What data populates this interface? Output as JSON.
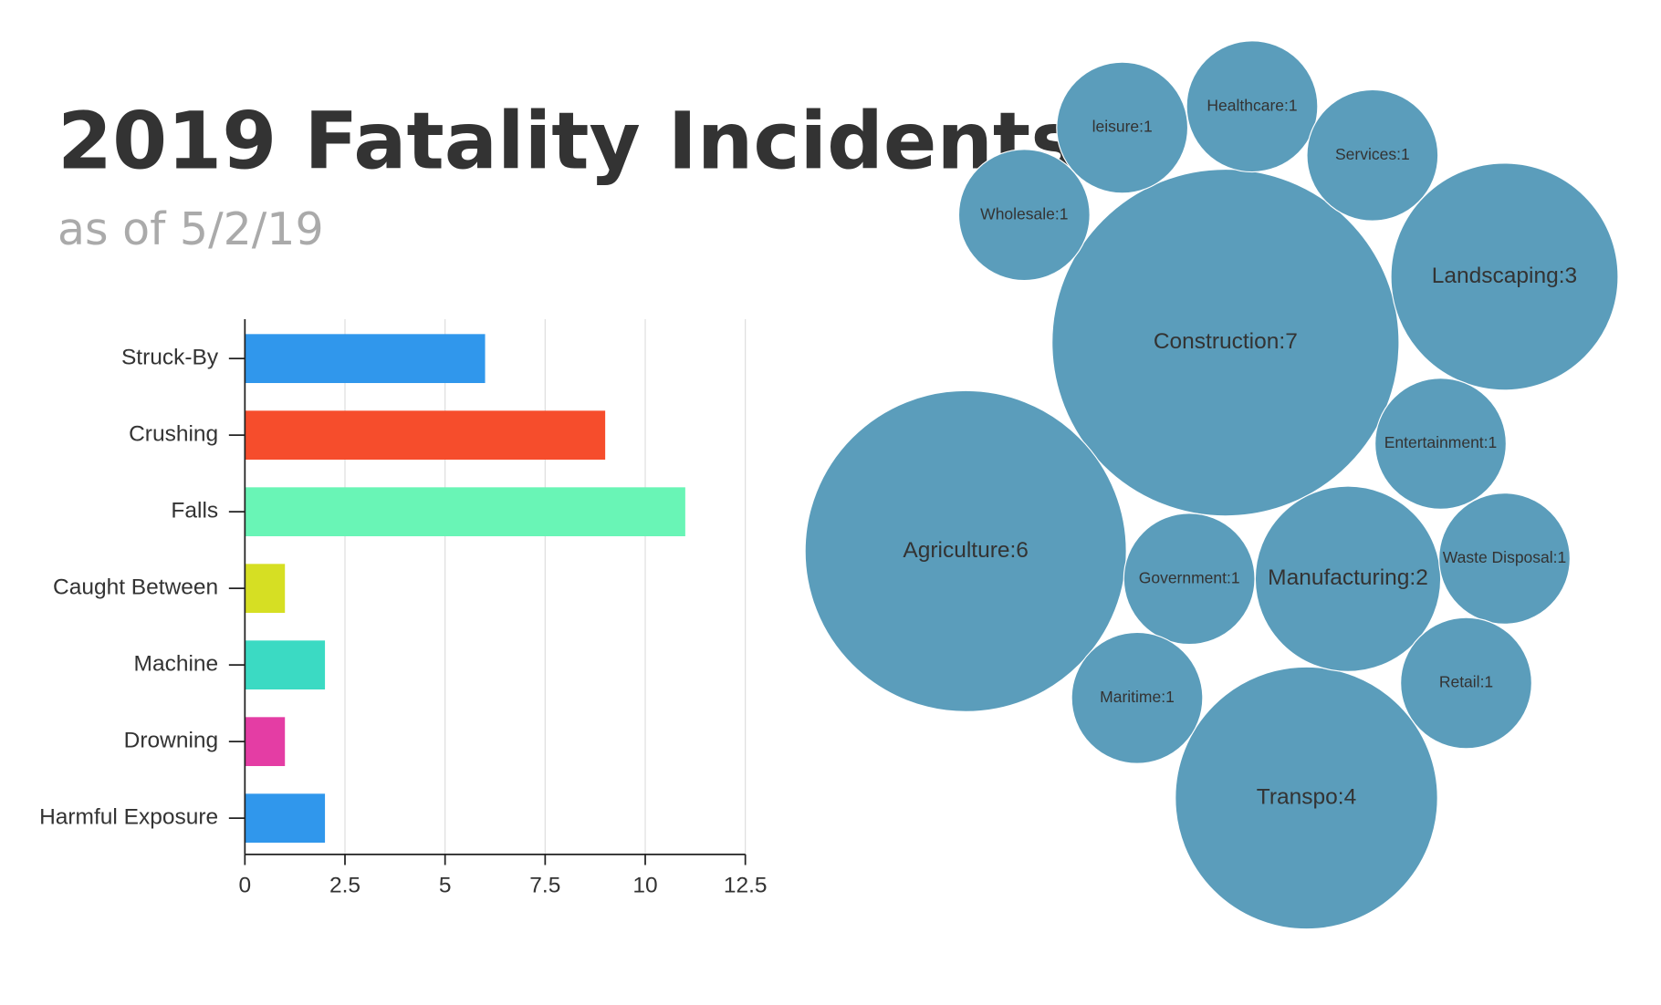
{
  "header": {
    "title": "2019 Fatality Incidents",
    "subtitle": "as of 5/2/19"
  },
  "chart_data": [
    {
      "type": "bar",
      "orientation": "horizontal",
      "categories": [
        "Struck-By",
        "Crushing",
        "Falls",
        "Caught Between",
        "Machine",
        "Drowning",
        "Harmful Exposure"
      ],
      "values": [
        6,
        9,
        11,
        1,
        2,
        1,
        2
      ],
      "colors": [
        "#3097ec",
        "#f64d2c",
        "#69f5b6",
        "#d6df23",
        "#3bdac3",
        "#e43da4",
        "#3097ec"
      ],
      "xlim": [
        0,
        12.5
      ],
      "xticks": [
        0,
        2.5,
        5,
        7.5,
        10,
        12.5
      ],
      "grid": true
    },
    {
      "type": "packed_bubble",
      "color": "#5b9dbb",
      "values": [
        7,
        6,
        4,
        3,
        2,
        1,
        1,
        1,
        1,
        1,
        1,
        1,
        1,
        1
      ],
      "value_labels": [
        "Construction:7",
        "Agriculture:6",
        "Transpo:4",
        "Landscaping:3",
        "Manufacturing:2",
        "Wholesale:1",
        "leisure:1",
        "Healthcare:1",
        "Services:1",
        "Entertainment:1",
        "Government:1",
        "Waste Disposal:1",
        "Maritime:1",
        "Retail:1"
      ]
    }
  ]
}
